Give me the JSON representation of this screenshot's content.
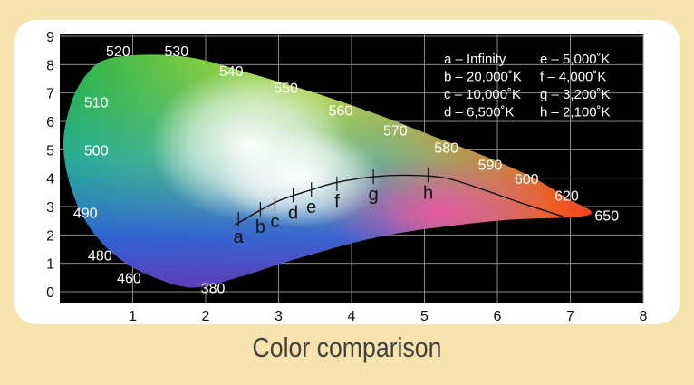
{
  "caption": "Color comparison",
  "chart_data": {
    "type": "diagram",
    "xlim": [
      0,
      8
    ],
    "ylim": [
      0,
      9
    ],
    "x_ticks": [
      "1",
      "2",
      "3",
      "4",
      "5",
      "6",
      "7",
      "8"
    ],
    "y_ticks": [
      "0",
      "1",
      "2",
      "3",
      "4",
      "5",
      "6",
      "7",
      "8",
      "9"
    ],
    "grid": true,
    "colors": {
      "panel": "#000000",
      "card": "#ffffff",
      "page": "#f6e3ad",
      "green": "#25b050",
      "blue": "#2d6fd6",
      "violet": "#7a3aa6",
      "red": "#e8202a",
      "orange": "#f06a1e",
      "yellow": "#f0d41e"
    },
    "wavelength_labels": [
      {
        "text": "520",
        "x": 0.8,
        "y": 8.3
      },
      {
        "text": "530",
        "x": 1.6,
        "y": 8.3
      },
      {
        "text": "540",
        "x": 2.35,
        "y": 7.6
      },
      {
        "text": "550",
        "x": 3.1,
        "y": 7.0
      },
      {
        "text": "560",
        "x": 3.85,
        "y": 6.2
      },
      {
        "text": "570",
        "x": 4.6,
        "y": 5.5
      },
      {
        "text": "580",
        "x": 5.3,
        "y": 4.9
      },
      {
        "text": "590",
        "x": 5.9,
        "y": 4.3
      },
      {
        "text": "600",
        "x": 6.4,
        "y": 3.8
      },
      {
        "text": "620",
        "x": 6.95,
        "y": 3.2
      },
      {
        "text": "650",
        "x": 7.5,
        "y": 2.5
      },
      {
        "text": "510",
        "x": 0.5,
        "y": 6.5
      },
      {
        "text": "500",
        "x": 0.5,
        "y": 4.8
      },
      {
        "text": "490",
        "x": 0.35,
        "y": 2.6
      },
      {
        "text": "480",
        "x": 0.55,
        "y": 1.1
      },
      {
        "text": "460",
        "x": 0.95,
        "y": 0.3
      },
      {
        "text": "380",
        "x": 2.1,
        "y": -0.05
      }
    ],
    "locus": [
      [
        0.65,
        8.2
      ],
      [
        1.3,
        8.35
      ],
      [
        1.9,
        8.2
      ],
      [
        2.6,
        7.7
      ],
      [
        3.5,
        7.0
      ],
      [
        4.4,
        6.2
      ],
      [
        5.2,
        5.4
      ],
      [
        5.9,
        4.7
      ],
      [
        6.5,
        4.0
      ],
      [
        6.95,
        3.3
      ],
      [
        7.25,
        2.7
      ],
      [
        6.0,
        2.5
      ],
      [
        4.5,
        2.0
      ],
      [
        3.3,
        1.2
      ],
      [
        2.5,
        0.55
      ],
      [
        1.85,
        0.15
      ],
      [
        1.3,
        0.5
      ],
      [
        0.8,
        1.2
      ],
      [
        0.4,
        2.3
      ],
      [
        0.15,
        3.7
      ],
      [
        0.05,
        5.2
      ],
      [
        0.15,
        6.6
      ],
      [
        0.35,
        7.6
      ]
    ],
    "planckian_curve": [
      [
        2.4,
        2.35
      ],
      [
        2.7,
        2.8
      ],
      [
        3.0,
        3.2
      ],
      [
        3.4,
        3.55
      ],
      [
        3.8,
        3.85
      ],
      [
        4.3,
        4.05
      ],
      [
        4.8,
        4.1
      ],
      [
        5.3,
        4.0
      ],
      [
        5.8,
        3.6
      ],
      [
        6.3,
        3.15
      ],
      [
        6.9,
        2.65
      ]
    ],
    "temperature_points": [
      {
        "label": "a",
        "x": 2.45,
        "y": 2.55
      },
      {
        "label": "b",
        "x": 2.75,
        "y": 2.9
      },
      {
        "label": "c",
        "x": 2.95,
        "y": 3.1
      },
      {
        "label": "d",
        "x": 3.2,
        "y": 3.4
      },
      {
        "label": "e",
        "x": 3.45,
        "y": 3.6
      },
      {
        "label": "f",
        "x": 3.8,
        "y": 3.8
      },
      {
        "label": "g",
        "x": 4.3,
        "y": 4.05
      },
      {
        "label": "h",
        "x": 5.05,
        "y": 4.1
      }
    ],
    "legend": [
      {
        "key": "a",
        "text": "a – Infinity"
      },
      {
        "key": "b",
        "text": "b – 20,000˚K"
      },
      {
        "key": "c",
        "text": "c – 10,000˚K"
      },
      {
        "key": "d",
        "text": "d – 6,500˚K"
      },
      {
        "key": "e",
        "text": "e – 5,000˚K"
      },
      {
        "key": "f",
        "text": "f –  4,000˚K"
      },
      {
        "key": "g",
        "text": "g – 3,200˚K"
      },
      {
        "key": "h",
        "text": "h – 2,100˚K"
      }
    ]
  }
}
